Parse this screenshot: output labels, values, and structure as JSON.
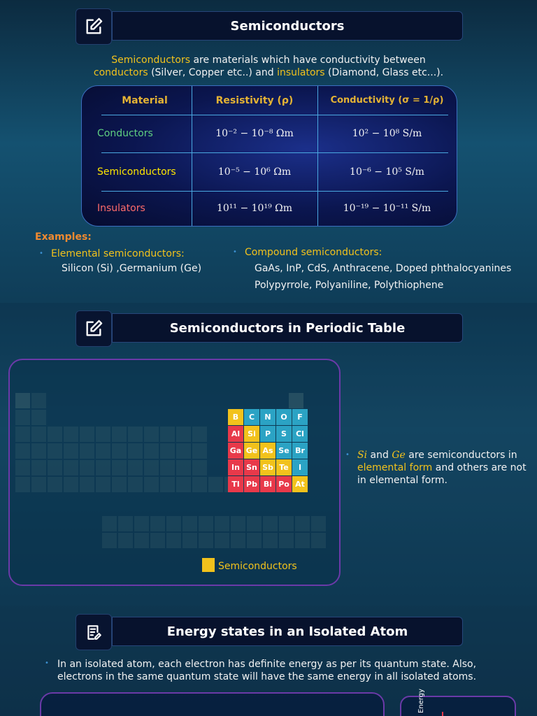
{
  "section1": {
    "title": "Semiconductors",
    "intro": [
      "Semiconductors",
      " are materials which have  conductivity between",
      "conductors",
      " (Silver, Copper etc..) and ",
      "insulators",
      " (Diamond, Glass etc...)."
    ],
    "table": {
      "header": [
        "Material",
        "Resistivity (ρ)",
        "Conductivity (σ = 1/ρ)"
      ],
      "rows": [
        [
          "Conductors",
          "10⁻² − 10⁻⁸ Ωm",
          "10² − 10⁸ S/m"
        ],
        [
          "Semiconductors",
          "10⁻⁵ − 10⁶ Ωm",
          "10⁻⁶ − 10⁵ S/m"
        ],
        [
          "Insulators",
          "10¹¹ − 10¹⁹ Ωm",
          "10⁻¹⁹ − 10⁻¹¹ S/m"
        ]
      ]
    },
    "examples_label": "Examples:",
    "examples": [
      {
        "heading": "Elemental semiconductors:",
        "lines": [
          "Silicon (Si) ,Germanium (Ge)"
        ]
      },
      {
        "heading": "Compound semiconductors:",
        "lines": [
          "GaAs, InP, CdS, Anthracene, Doped phthalocyanines",
          "Polypyrrole, Polyaniline, Polythiophene"
        ]
      }
    ]
  },
  "section2": {
    "title": "Semiconductors in Periodic Table",
    "elements": [
      [
        {
          "symbol": "B",
          "color": "#f2c21c"
        },
        {
          "symbol": "C",
          "color": "#2ba3c4"
        },
        {
          "symbol": "N",
          "color": "#2ba3c4"
        },
        {
          "symbol": "O",
          "color": "#2ba3c4"
        },
        {
          "symbol": "F",
          "color": "#2ba3c4"
        }
      ],
      [
        {
          "symbol": "Al",
          "color": "#e8394a"
        },
        {
          "symbol": "Si",
          "color": "#f2c21c"
        },
        {
          "symbol": "P",
          "color": "#2ba3c4"
        },
        {
          "symbol": "S",
          "color": "#2ba3c4"
        },
        {
          "symbol": "Cl",
          "color": "#2ba3c4"
        }
      ],
      [
        {
          "symbol": "Ga",
          "color": "#e8394a"
        },
        {
          "symbol": "Ge",
          "color": "#f2c21c"
        },
        {
          "symbol": "As",
          "color": "#f2c21c"
        },
        {
          "symbol": "Se",
          "color": "#2ba3c4"
        },
        {
          "symbol": "Br",
          "color": "#2ba3c4"
        }
      ],
      [
        {
          "symbol": "In",
          "color": "#e8394a"
        },
        {
          "symbol": "Sn",
          "color": "#e8394a"
        },
        {
          "symbol": "Sb",
          "color": "#f2c21c"
        },
        {
          "symbol": "Te",
          "color": "#f2c21c"
        },
        {
          "symbol": "I",
          "color": "#2ba3c4"
        }
      ],
      [
        {
          "symbol": "Tl",
          "color": "#e8394a"
        },
        {
          "symbol": "Pb",
          "color": "#e8394a"
        },
        {
          "symbol": "Bi",
          "color": "#e8394a"
        },
        {
          "symbol": "Po",
          "color": "#e8394a"
        },
        {
          "symbol": "At",
          "color": "#f2c21c"
        }
      ]
    ],
    "legend": {
      "label": "Semiconductors",
      "color": "#f2c21c"
    },
    "note": [
      "Si",
      " and ",
      "Ge",
      " are semiconductors in ",
      "elemental form",
      " and others are not in elemental form."
    ]
  },
  "section3": {
    "title": "Energy states in an Isolated Atom",
    "bullet": "In an isolated atom, each electron has definite energy as per its quantum state. Also, electrons in the same quantum state will have the same energy in all isolated atoms.",
    "axis_label": "Energy"
  }
}
